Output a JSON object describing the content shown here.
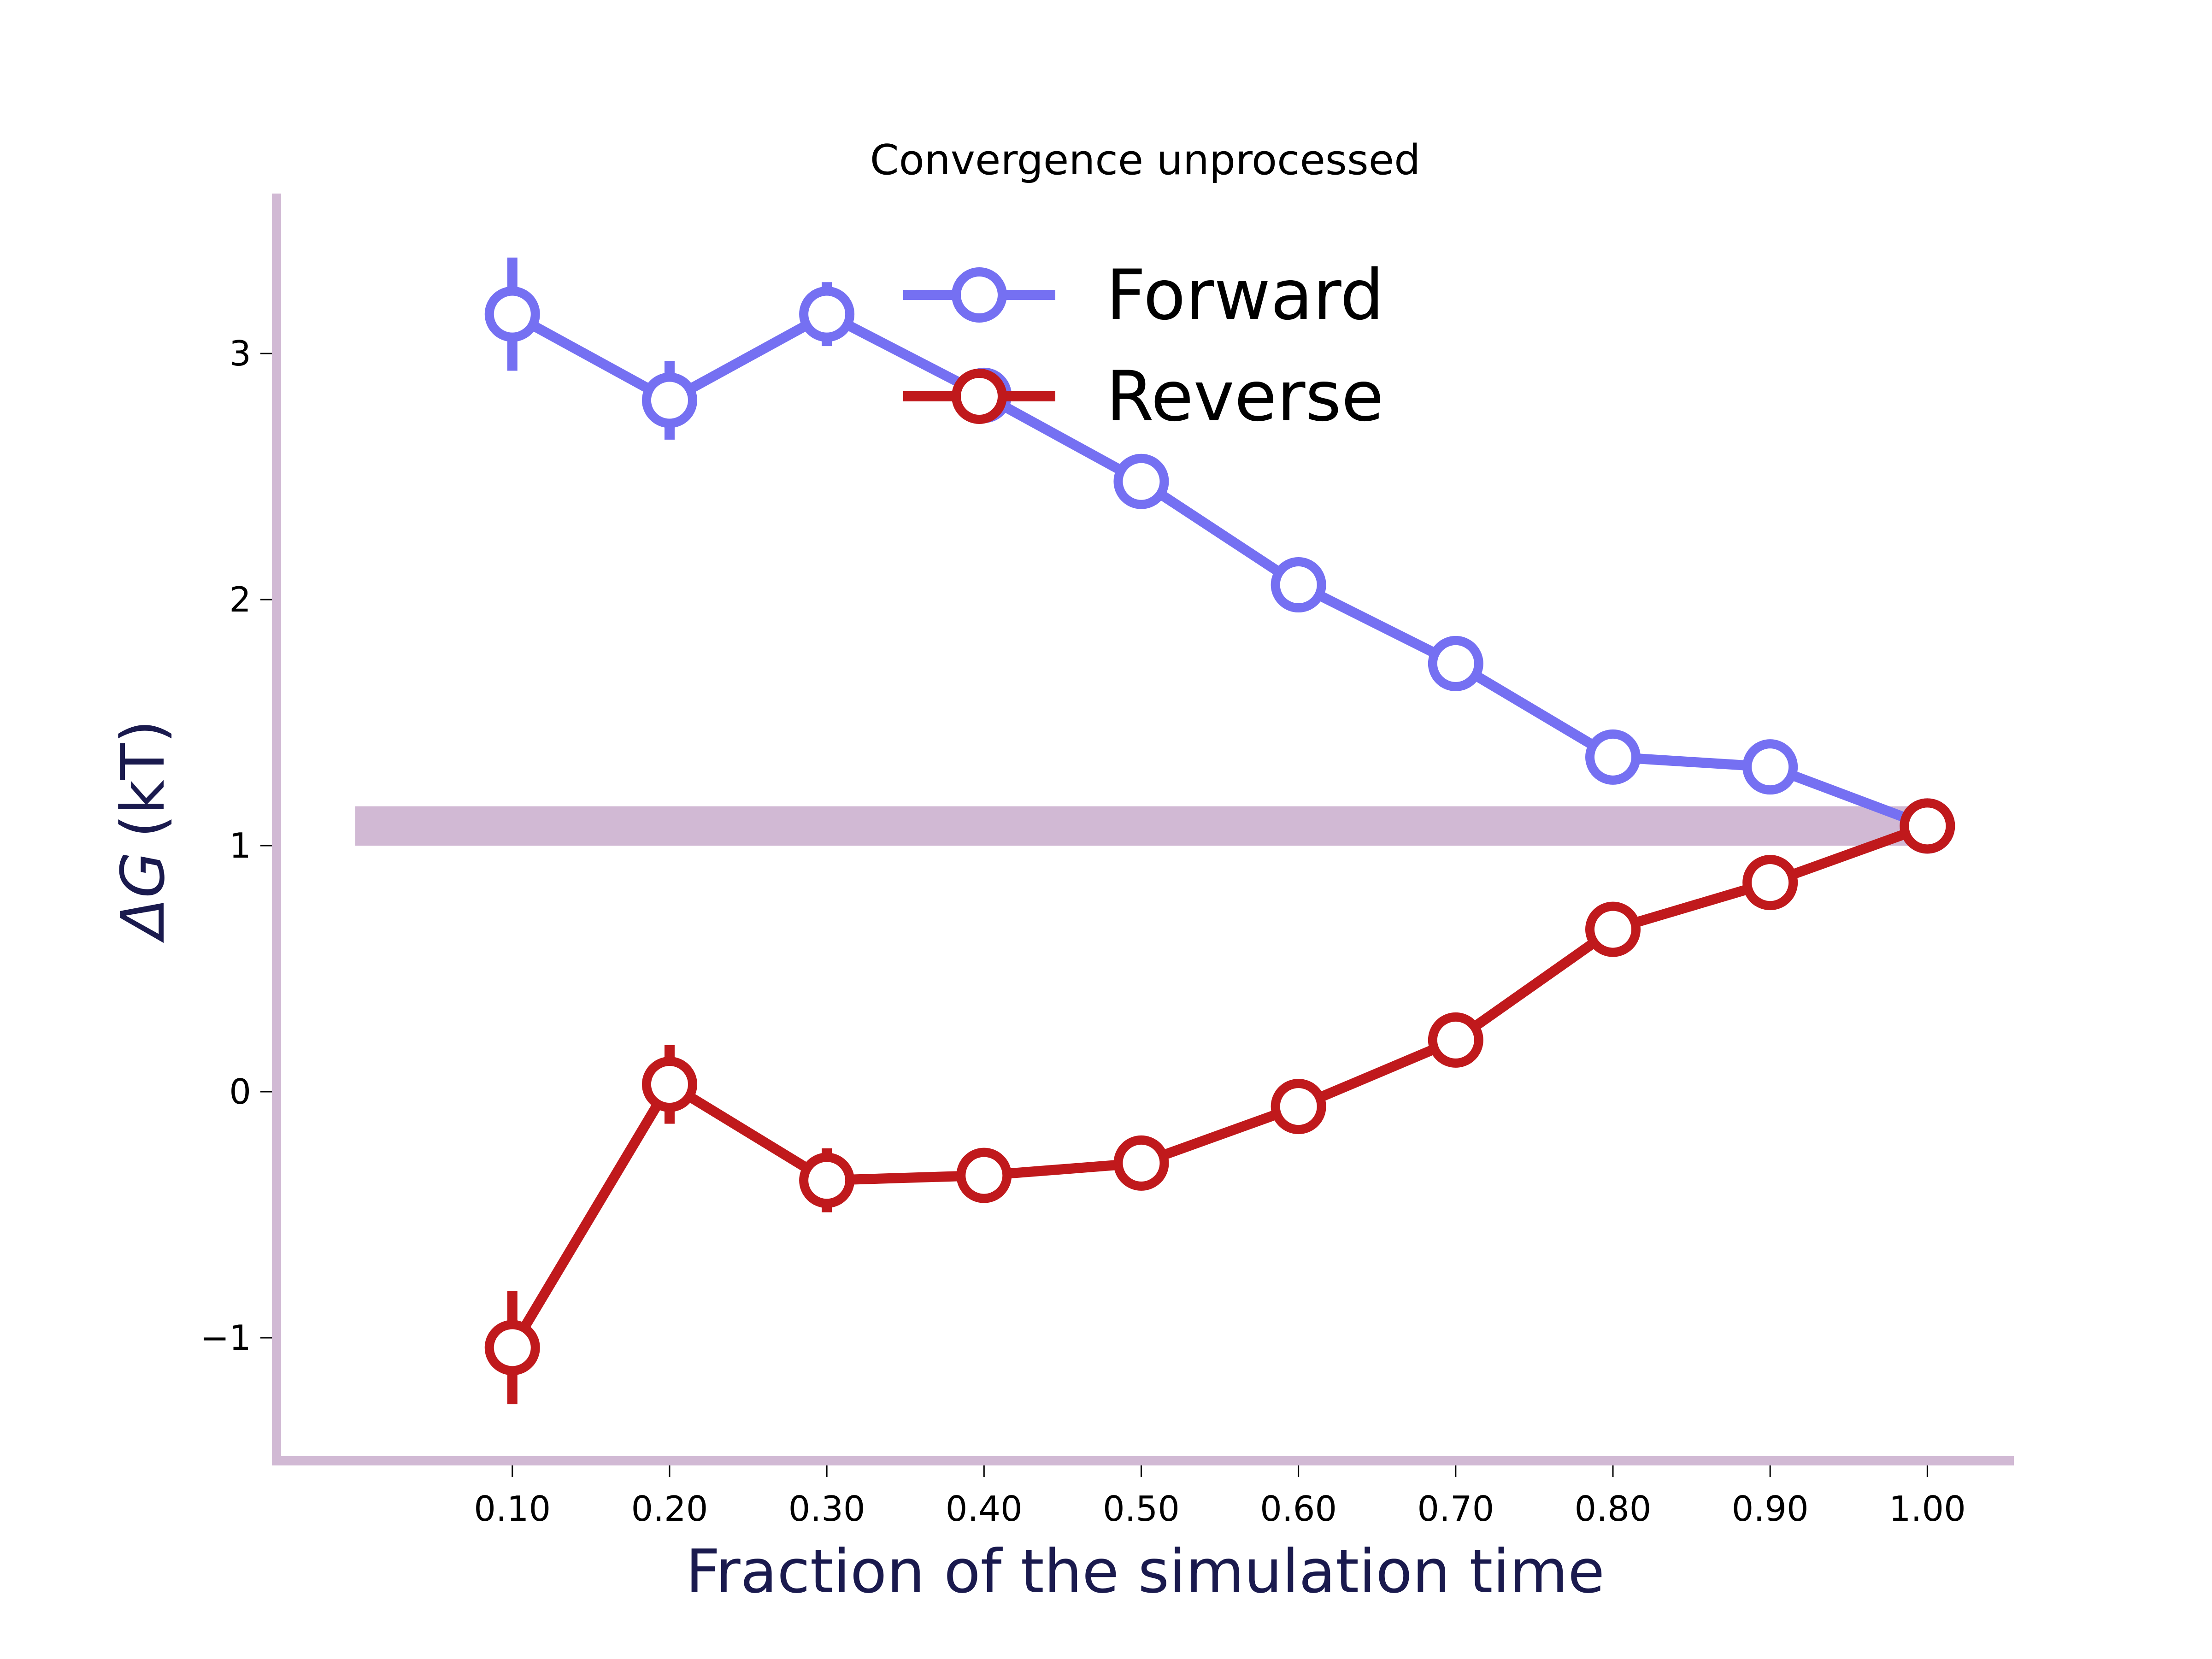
{
  "chart_data": {
    "type": "line",
    "title": "Convergence unprocessed",
    "xlabel": "Fraction of the simulation time",
    "ylabel_symbol": "ΔG",
    "ylabel_unit": "(kT)",
    "x": [
      0.1,
      0.2,
      0.3,
      0.4,
      0.5,
      0.6,
      0.7,
      0.8,
      0.9,
      1.0
    ],
    "x_tick_labels": [
      "0.10",
      "0.20",
      "0.30",
      "0.40",
      "0.50",
      "0.60",
      "0.70",
      "0.80",
      "0.90",
      "1.00"
    ],
    "y_ticks": [
      -1,
      0,
      1,
      2,
      3
    ],
    "y_tick_labels": [
      "−1",
      "0",
      "1",
      "2",
      "3"
    ],
    "xlim": [
      -0.05,
      1.055
    ],
    "ylim": [
      -1.5,
      3.65
    ],
    "grid": false,
    "legend_position": "top-center",
    "reference_band": {
      "y_low": 1.0,
      "y_high": 1.16,
      "x_start": 0.0,
      "x_end": 1.0,
      "color": "#d1b9d4"
    },
    "axis_color": "#d1b9d4",
    "series": [
      {
        "name": "Forward",
        "color": "#7570f2",
        "values": [
          3.16,
          2.81,
          3.16,
          2.83,
          2.48,
          2.06,
          1.74,
          1.36,
          1.32,
          1.08
        ],
        "errors": [
          0.23,
          0.16,
          0.13,
          0.1,
          0.06,
          0.04,
          0.03,
          0.02,
          0.02,
          0.0
        ]
      },
      {
        "name": "Reverse",
        "color": "#c0191c",
        "values": [
          -1.04,
          0.03,
          -0.36,
          -0.34,
          -0.29,
          -0.06,
          0.21,
          0.66,
          0.85,
          1.08
        ],
        "errors": [
          0.23,
          0.16,
          0.13,
          0.1,
          0.06,
          0.04,
          0.03,
          0.02,
          0.02,
          0.0
        ]
      }
    ]
  }
}
